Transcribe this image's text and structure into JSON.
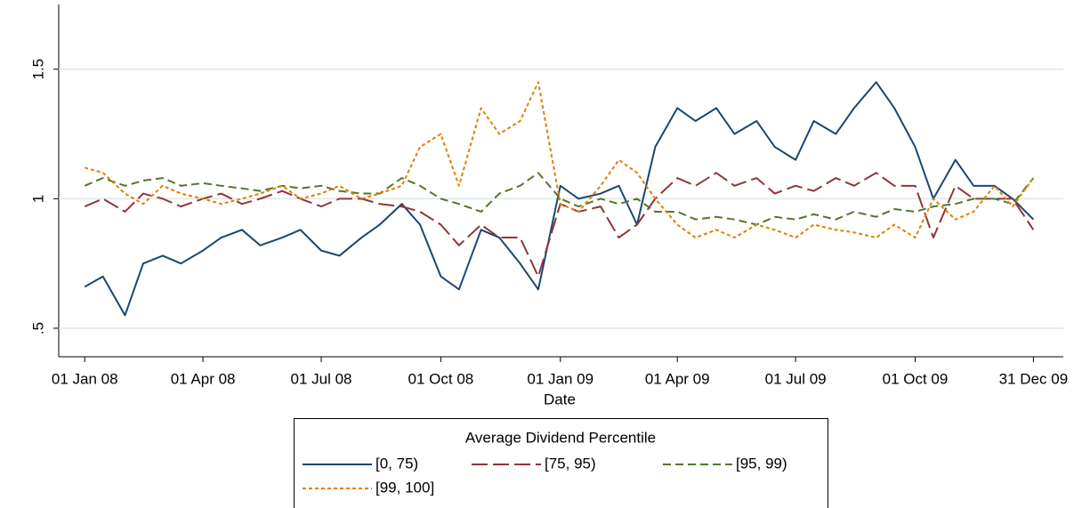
{
  "chart_data": {
    "type": "line",
    "x_label": "Date",
    "legend_title": "Average Dividend Percentile",
    "x": [
      "2008-01-01",
      "2008-01-15",
      "2008-02-01",
      "2008-02-15",
      "2008-03-01",
      "2008-03-15",
      "2008-04-01",
      "2008-04-15",
      "2008-05-01",
      "2008-05-15",
      "2008-06-01",
      "2008-06-15",
      "2008-07-01",
      "2008-07-15",
      "2008-08-01",
      "2008-08-15",
      "2008-09-01",
      "2008-09-15",
      "2008-10-01",
      "2008-10-15",
      "2008-11-01",
      "2008-11-15",
      "2008-12-01",
      "2008-12-15",
      "2009-01-01",
      "2009-01-15",
      "2009-02-01",
      "2009-02-15",
      "2009-03-01",
      "2009-03-15",
      "2009-04-01",
      "2009-04-15",
      "2009-05-01",
      "2009-05-15",
      "2009-06-01",
      "2009-06-15",
      "2009-07-01",
      "2009-07-15",
      "2009-08-01",
      "2009-08-15",
      "2009-09-01",
      "2009-09-15",
      "2009-10-01",
      "2009-10-15",
      "2009-11-01",
      "2009-11-15",
      "2009-12-01",
      "2009-12-15",
      "2009-12-31"
    ],
    "series": [
      {
        "name": "[0, 75)",
        "color": "#1a476f",
        "values": [
          0.66,
          0.7,
          0.55,
          0.75,
          0.78,
          0.75,
          0.8,
          0.85,
          0.88,
          0.82,
          0.85,
          0.88,
          0.8,
          0.78,
          0.85,
          0.9,
          0.98,
          0.9,
          0.7,
          0.65,
          0.88,
          0.85,
          0.75,
          0.65,
          1.05,
          1.0,
          1.02,
          1.05,
          0.9,
          1.2,
          1.35,
          1.3,
          1.35,
          1.25,
          1.3,
          1.2,
          1.15,
          1.3,
          1.25,
          1.35,
          1.45,
          1.35,
          1.2,
          1.0,
          1.15,
          1.05,
          1.05,
          1.0,
          0.92
        ]
      },
      {
        "name": "[75, 95)",
        "color": "#90353b",
        "values": [
          0.97,
          1.0,
          0.95,
          1.02,
          1.0,
          0.97,
          1.0,
          1.02,
          0.98,
          1.0,
          1.03,
          1.0,
          0.97,
          1.0,
          1.0,
          0.98,
          0.97,
          0.95,
          0.9,
          0.82,
          0.9,
          0.85,
          0.85,
          0.7,
          0.98,
          0.95,
          0.97,
          0.85,
          0.9,
          1.0,
          1.08,
          1.05,
          1.1,
          1.05,
          1.08,
          1.02,
          1.05,
          1.03,
          1.08,
          1.05,
          1.1,
          1.05,
          1.05,
          0.85,
          1.05,
          1.0,
          1.0,
          1.0,
          0.88
        ]
      },
      {
        "name": "[95, 99)",
        "color": "#55752f",
        "values": [
          1.05,
          1.08,
          1.05,
          1.07,
          1.08,
          1.05,
          1.06,
          1.05,
          1.04,
          1.03,
          1.05,
          1.04,
          1.05,
          1.03,
          1.02,
          1.02,
          1.08,
          1.05,
          1.0,
          0.98,
          0.95,
          1.02,
          1.05,
          1.1,
          1.0,
          0.97,
          1.0,
          0.98,
          1.0,
          0.95,
          0.95,
          0.92,
          0.93,
          0.92,
          0.9,
          0.93,
          0.92,
          0.94,
          0.92,
          0.95,
          0.93,
          0.96,
          0.95,
          0.97,
          0.98,
          1.0,
          1.0,
          0.98,
          1.08
        ]
      },
      {
        "name": "[99, 100]",
        "color": "#e37e00",
        "values": [
          1.12,
          1.1,
          1.02,
          0.98,
          1.05,
          1.02,
          1.0,
          0.98,
          1.0,
          1.02,
          1.05,
          1.0,
          1.02,
          1.05,
          1.0,
          1.02,
          1.05,
          1.2,
          1.25,
          1.05,
          1.35,
          1.25,
          1.3,
          1.45,
          0.98,
          0.95,
          1.05,
          1.15,
          1.1,
          1.0,
          0.9,
          0.85,
          0.88,
          0.85,
          0.9,
          0.88,
          0.85,
          0.9,
          0.88,
          0.87,
          0.85,
          0.9,
          0.85,
          1.0,
          0.92,
          0.95,
          1.05,
          0.97,
          1.08
        ]
      }
    ],
    "xlim": [
      "2007-12-12",
      "2010-01-23"
    ],
    "xticks": [
      {
        "value": "2008-01-01",
        "label": "01 Jan 08"
      },
      {
        "value": "2008-04-01",
        "label": "01 Apr 08"
      },
      {
        "value": "2008-07-01",
        "label": "01 Jul 08"
      },
      {
        "value": "2008-10-01",
        "label": "01 Oct 08"
      },
      {
        "value": "2009-01-01",
        "label": "01 Jan 09"
      },
      {
        "value": "2009-04-01",
        "label": "01 Apr 09"
      },
      {
        "value": "2009-07-01",
        "label": "01 Jul 09"
      },
      {
        "value": "2009-10-01",
        "label": "01 Oct 09"
      },
      {
        "value": "2009-12-31",
        "label": "31 Dec 09"
      }
    ],
    "ylim": [
      0.39,
      1.75
    ],
    "yticks": [
      {
        "value": 0.5,
        "label": ".5"
      },
      1,
      1.5
    ],
    "grid": true
  }
}
